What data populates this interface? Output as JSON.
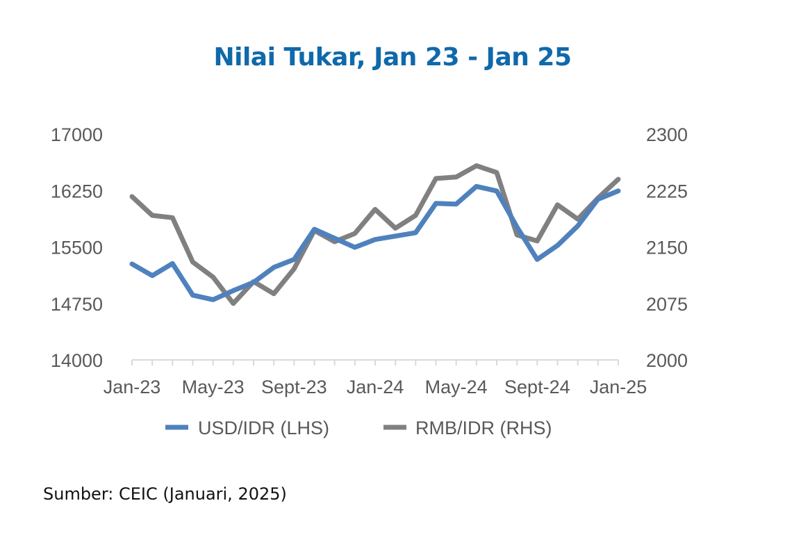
{
  "chart_data": {
    "type": "line",
    "title": "Nilai Tukar, Jan 23 - Jan 25",
    "source": "Sumber: CEIC (Januari, 2025)",
    "x": [
      "Jan-23",
      "Feb-23",
      "Mar-23",
      "Apr-23",
      "May-23",
      "Jun-23",
      "Jul-23",
      "Aug-23",
      "Sept-23",
      "Oct-23",
      "Nov-23",
      "Dec-23",
      "Jan-24",
      "Feb-24",
      "Mar-24",
      "Apr-24",
      "May-24",
      "Jun-24",
      "Jul-24",
      "Aug-24",
      "Sept-24",
      "Oct-24",
      "Nov-24",
      "Dec-24",
      "Jan-25"
    ],
    "x_tick_labels": [
      "Jan-23",
      "May-23",
      "Sept-23",
      "Jan-24",
      "May-24",
      "Sept-24",
      "Jan-25"
    ],
    "y_left": {
      "ylim": [
        14000,
        17000
      ],
      "ticks": [
        "14000",
        "14750",
        "15500",
        "16250",
        "17000"
      ]
    },
    "y_right": {
      "ylim": [
        2000,
        2300
      ],
      "ticks": [
        "2000",
        "2075",
        "2150",
        "2225",
        "2300"
      ]
    },
    "grid": false,
    "legend_placement": "bottom",
    "series": [
      {
        "name": "USD/IDR (LHS)",
        "axis": "left",
        "color": "#4f81bd",
        "values": [
          15275,
          15120,
          15280,
          14860,
          14800,
          14920,
          15030,
          15230,
          15335,
          15735,
          15615,
          15495,
          15600,
          15645,
          15690,
          16080,
          16070,
          16305,
          16245,
          15765,
          15335,
          15520,
          15780,
          16135,
          16245
        ]
      },
      {
        "name": "RMB/IDR (RHS)",
        "axis": "right",
        "color": "#808080",
        "values": [
          2217,
          2192,
          2189,
          2130,
          2110,
          2075,
          2104,
          2088,
          2121,
          2172,
          2157,
          2168,
          2200,
          2175,
          2192,
          2241,
          2243,
          2258,
          2249,
          2166,
          2158,
          2206,
          2187,
          2215,
          2240
        ]
      }
    ]
  }
}
